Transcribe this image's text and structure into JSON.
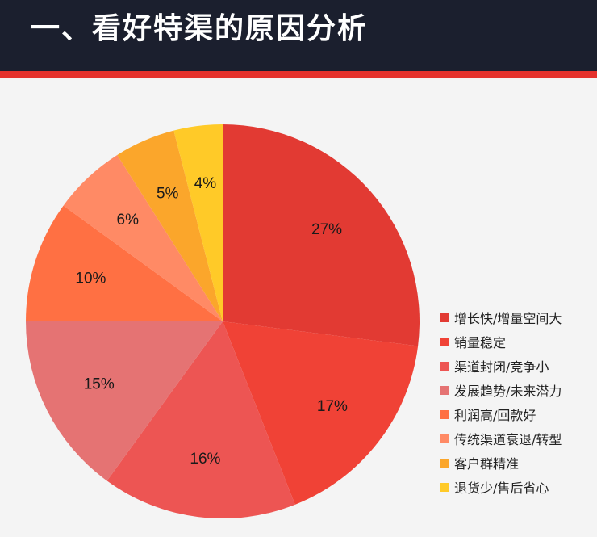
{
  "header": {
    "title": "一、看好特渠的原因分析",
    "background_color": "#1b1f2e",
    "accent_color": "#e5312c"
  },
  "chart_data": {
    "type": "pie",
    "categories": [
      "增长快/增量空间大",
      "销量稳定",
      "渠道封闭/竞争小",
      "发展趋势/未来潜力",
      "利润高/回款好",
      "传统渠道衰退/转型",
      "客户群精准",
      "退货少/售后省心"
    ],
    "values": [
      27,
      17,
      16,
      15,
      10,
      6,
      5,
      4
    ],
    "value_labels": [
      "27%",
      "17%",
      "16%",
      "15%",
      "10%",
      "6%",
      "5%",
      "4%"
    ],
    "colors": [
      "#e23a33",
      "#f04236",
      "#ed5553",
      "#e57373",
      "#ff7043",
      "#ff8a65",
      "#fba62b",
      "#ffca28"
    ],
    "start": "12 o'clock",
    "direction": "clockwise",
    "legend_position": "right"
  }
}
